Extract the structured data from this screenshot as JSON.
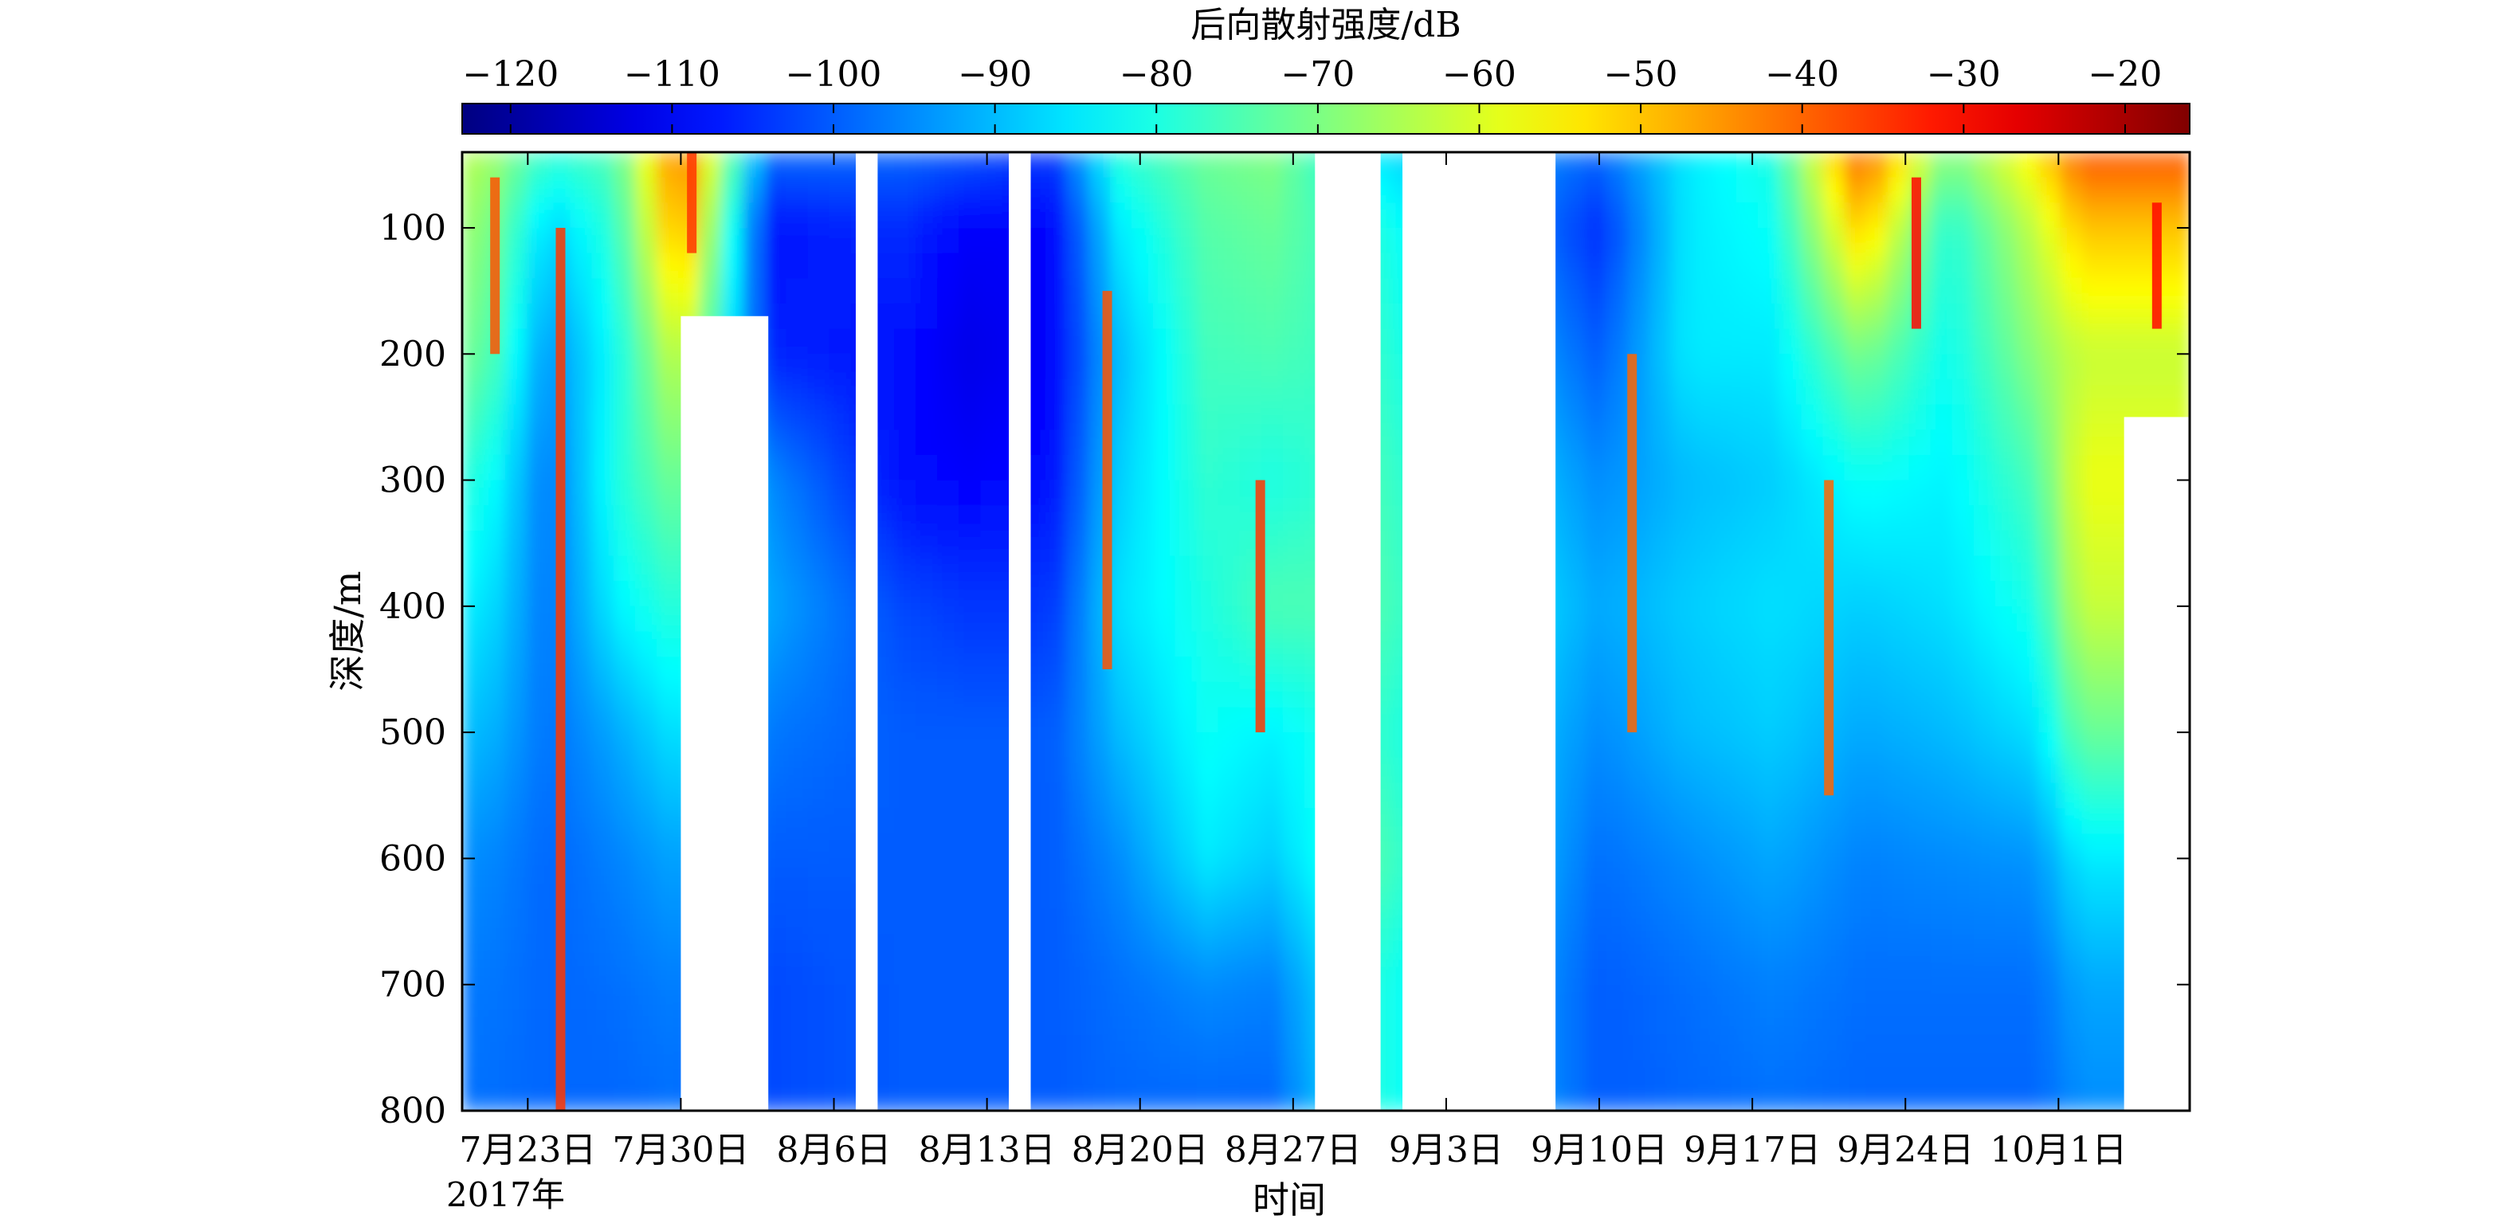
{
  "chart_data": {
    "type": "heatmap",
    "title": "",
    "colorbar": {
      "label": "后向散射强度/dB",
      "range": [
        -123,
        -16
      ],
      "ticks": [
        -120,
        -110,
        -100,
        -90,
        -80,
        -70,
        -60,
        -50,
        -40,
        -30,
        -20
      ],
      "tick_labels": [
        "−120",
        "−110",
        "−100",
        "−90",
        "−80",
        "−70",
        "−60",
        "−50",
        "−40",
        "−30",
        "−20"
      ],
      "colormap": "jet",
      "placement": "top"
    },
    "xlabel": "时间",
    "ylabel": "深度/m",
    "x_range": [
      "2017-07-20",
      "2017-10-07"
    ],
    "x_ticks": [
      {
        "date": "2017-07-23",
        "label": "7月23日"
      },
      {
        "date": "2017-07-30",
        "label": "7月30日"
      },
      {
        "date": "2017-08-06",
        "label": "8月6日"
      },
      {
        "date": "2017-08-13",
        "label": "8月13日"
      },
      {
        "date": "2017-08-20",
        "label": "8月20日"
      },
      {
        "date": "2017-08-27",
        "label": "8月27日"
      },
      {
        "date": "2017-09-03",
        "label": "9月3日"
      },
      {
        "date": "2017-09-10",
        "label": "9月10日"
      },
      {
        "date": "2017-09-17",
        "label": "9月17日"
      },
      {
        "date": "2017-09-24",
        "label": "9月24日"
      },
      {
        "date": "2017-10-01",
        "label": "10月1日"
      }
    ],
    "year_label": "2017年",
    "y_range": [
      40,
      800
    ],
    "y_reversed": true,
    "y_ticks": [
      100,
      200,
      300,
      400,
      500,
      600,
      700,
      800
    ],
    "data_gaps": [
      {
        "start": "2017-07-30",
        "end": "2017-08-02",
        "from_depth": 170
      },
      {
        "start": "2017-08-07",
        "end": "2017-08-07",
        "from_depth": 40
      },
      {
        "start": "2017-08-14",
        "end": "2017-08-14",
        "from_depth": 40
      },
      {
        "start": "2017-08-28",
        "end": "2017-08-30",
        "from_depth": 40
      },
      {
        "start": "2017-09-01",
        "end": "2017-09-07",
        "from_depth": 40
      },
      {
        "start": "2017-10-04",
        "end": "2017-10-07",
        "from_depth": 250
      }
    ],
    "backscatter_dB_monthly_profile": {
      "depth_m": [
        50,
        100,
        200,
        300,
        400,
        500,
        600,
        700,
        800
      ],
      "rows": [
        {
          "date": "2017-07-21",
          "values": [
            -65,
            -68,
            -72,
            -80,
            -85,
            -90,
            -95,
            -97,
            -98
          ]
        },
        {
          "date": "2017-07-24",
          "values": [
            -80,
            -88,
            -95,
            -98,
            -98,
            -98,
            -99,
            -99,
            -99
          ]
        },
        {
          "date": "2017-07-27",
          "values": [
            -75,
            -78,
            -82,
            -80,
            -84,
            -92,
            -96,
            -98,
            -99
          ]
        },
        {
          "date": "2017-07-30",
          "values": [
            -40,
            -45,
            -60,
            -70,
            -78,
            -85,
            -92,
            -96,
            -98
          ]
        },
        {
          "date": "2017-08-03",
          "values": [
            -100,
            -108,
            -106,
            -95,
            -92,
            -97,
            -100,
            -102,
            -102
          ]
        },
        {
          "date": "2017-08-09",
          "values": [
            -100,
            -105,
            -108,
            -108,
            -102,
            -100,
            -100,
            -100,
            -100
          ]
        },
        {
          "date": "2017-08-12",
          "values": [
            -102,
            -110,
            -112,
            -110,
            -104,
            -100,
            -100,
            -100,
            -100
          ]
        },
        {
          "date": "2017-08-16",
          "values": [
            -105,
            -110,
            -110,
            -108,
            -104,
            -100,
            -100,
            -100,
            -100
          ]
        },
        {
          "date": "2017-08-19",
          "values": [
            -80,
            -85,
            -90,
            -88,
            -86,
            -90,
            -95,
            -98,
            -99
          ]
        },
        {
          "date": "2017-08-23",
          "values": [
            -72,
            -74,
            -76,
            -78,
            -80,
            -82,
            -85,
            -95,
            -99
          ]
        },
        {
          "date": "2017-08-26",
          "values": [
            -70,
            -72,
            -75,
            -80,
            -75,
            -84,
            -88,
            -96,
            -99
          ]
        },
        {
          "date": "2017-08-31",
          "values": [
            -85,
            -80,
            -78,
            -76,
            -75,
            -78,
            -75,
            -80,
            -80
          ]
        },
        {
          "date": "2017-09-10",
          "values": [
            -100,
            -105,
            -100,
            -95,
            -92,
            -95,
            -98,
            -100,
            -100
          ]
        },
        {
          "date": "2017-09-14",
          "values": [
            -85,
            -85,
            -85,
            -90,
            -88,
            -90,
            -95,
            -98,
            -99
          ]
        },
        {
          "date": "2017-09-18",
          "values": [
            -80,
            -82,
            -85,
            -88,
            -86,
            -88,
            -92,
            -96,
            -98
          ]
        },
        {
          "date": "2017-09-22",
          "values": [
            -40,
            -50,
            -70,
            -82,
            -88,
            -92,
            -96,
            -98,
            -99
          ]
        },
        {
          "date": "2017-09-26",
          "values": [
            -72,
            -80,
            -82,
            -84,
            -86,
            -90,
            -95,
            -98,
            -99
          ]
        },
        {
          "date": "2017-09-30",
          "values": [
            -55,
            -62,
            -68,
            -75,
            -80,
            -86,
            -94,
            -98,
            -99
          ]
        },
        {
          "date": "2017-10-02",
          "values": [
            -40,
            -50,
            -62,
            -58,
            -62,
            -72,
            -85,
            -92,
            -95
          ]
        }
      ]
    },
    "notable_features": {
      "narrow_high_intensity_streaks": [
        {
          "date": "2017-07-24",
          "depth_range": [
            100,
            800
          ],
          "value": -35
        },
        {
          "date": "2017-07-21",
          "depth_range": [
            60,
            200
          ],
          "value": -38
        },
        {
          "date": "2017-07-30",
          "depth_range": [
            40,
            120
          ],
          "value": -35
        },
        {
          "date": "2017-08-18",
          "depth_range": [
            150,
            450
          ],
          "value": -38
        },
        {
          "date": "2017-08-25",
          "depth_range": [
            300,
            500
          ],
          "value": -35
        },
        {
          "date": "2017-09-11",
          "depth_range": [
            200,
            500
          ],
          "value": -40
        },
        {
          "date": "2017-09-20",
          "depth_range": [
            300,
            550
          ],
          "value": -40
        },
        {
          "date": "2017-09-24",
          "depth_range": [
            60,
            180
          ],
          "value": -30
        },
        {
          "date": "2017-10-05",
          "depth_range": [
            80,
            180
          ],
          "value": -30
        }
      ]
    },
    "grid": false
  }
}
